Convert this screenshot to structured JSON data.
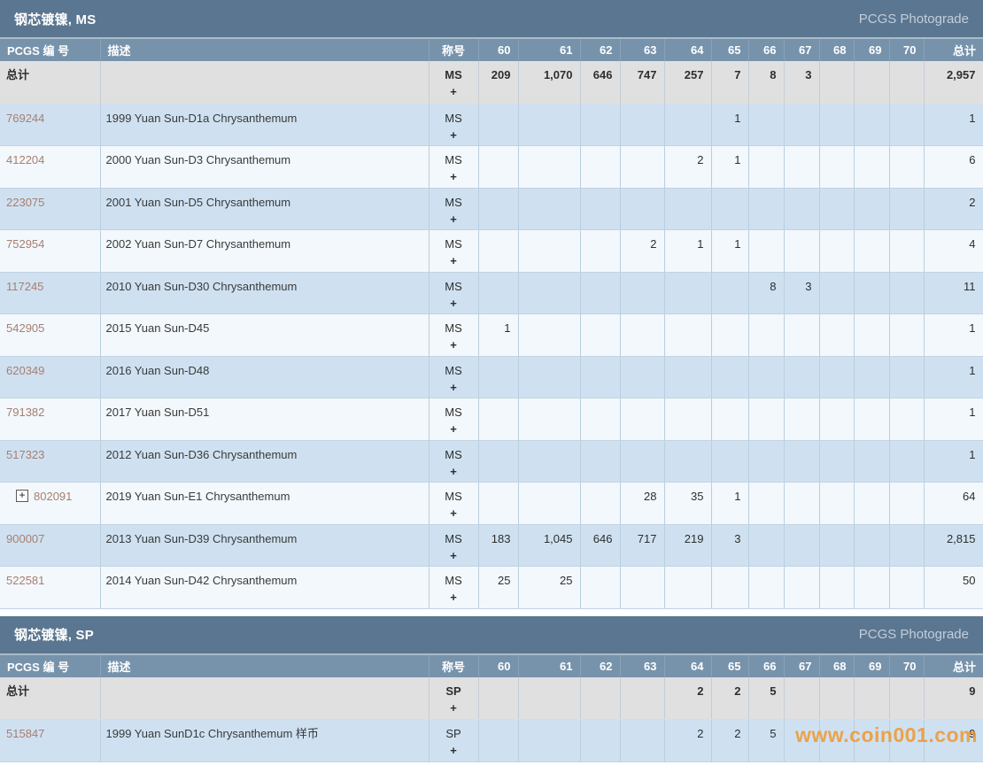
{
  "columns": {
    "pcgs": "PCGS 编 号",
    "desc": "描述",
    "designation": "称号",
    "total": "总计"
  },
  "grade_columns": [
    "60",
    "61",
    "62",
    "63",
    "64",
    "65",
    "66",
    "67",
    "68",
    "69",
    "70"
  ],
  "icons": {
    "expand_icon_glyph": "+"
  },
  "watermark": "www.coin001.com",
  "colors": {
    "section_bar": "#5b7690",
    "header_row": "#7793ac",
    "total_row_bg": "#e0e0e1",
    "row_blue": "#cfe1f1",
    "row_white": "#f3f8fc",
    "pcgs_link": "#a87e70",
    "watermark_orange": "#f0962d"
  },
  "sections": [
    {
      "title": "钢芯镀镍, MS",
      "photograde_label": "PCGS Photograde",
      "total_row": {
        "label": "总计",
        "designation": "MS",
        "plus": "+",
        "grades": {
          "60": "209",
          "61": "1,070",
          "62": "646",
          "63": "747",
          "64": "257",
          "65": "7",
          "66": "8",
          "67": "3",
          "68": "",
          "69": "",
          "70": ""
        },
        "total": "2,957"
      },
      "rows": [
        {
          "pcgs": "769244",
          "expandable": false,
          "desc": "1999 Yuan Sun-D1a Chrysanthemum",
          "designation": "MS",
          "plus": "+",
          "grades": {
            "65": "1"
          },
          "total": "1"
        },
        {
          "pcgs": "412204",
          "expandable": false,
          "desc": "2000 Yuan Sun-D3 Chrysanthemum",
          "designation": "MS",
          "plus": "+",
          "grades": {
            "64": "2",
            "65": "1"
          },
          "total": "6"
        },
        {
          "pcgs": "223075",
          "expandable": false,
          "desc": "2001 Yuan Sun-D5 Chrysanthemum",
          "designation": "MS",
          "plus": "+",
          "grades": {},
          "total": "2"
        },
        {
          "pcgs": "752954",
          "expandable": false,
          "desc": "2002 Yuan Sun-D7 Chrysanthemum",
          "designation": "MS",
          "plus": "+",
          "grades": {
            "63": "2",
            "64": "1",
            "65": "1"
          },
          "total": "4"
        },
        {
          "pcgs": "117245",
          "expandable": false,
          "desc": "2010 Yuan Sun-D30 Chrysanthemum",
          "designation": "MS",
          "plus": "+",
          "grades": {
            "66": "8",
            "67": "3"
          },
          "total": "11"
        },
        {
          "pcgs": "542905",
          "expandable": false,
          "desc": "2015 Yuan Sun-D45",
          "designation": "MS",
          "plus": "+",
          "grades": {
            "60": "1"
          },
          "total": "1"
        },
        {
          "pcgs": "620349",
          "expandable": false,
          "desc": "2016 Yuan Sun-D48",
          "designation": "MS",
          "plus": "+",
          "grades": {},
          "total": "1"
        },
        {
          "pcgs": "791382",
          "expandable": false,
          "desc": "2017 Yuan Sun-D51",
          "designation": "MS",
          "plus": "+",
          "grades": {},
          "total": "1"
        },
        {
          "pcgs": "517323",
          "expandable": false,
          "desc": "2012 Yuan Sun-D36 Chrysanthemum",
          "designation": "MS",
          "plus": "+",
          "grades": {},
          "total": "1"
        },
        {
          "pcgs": "802091",
          "expandable": true,
          "desc": "2019 Yuan Sun-E1 Chrysanthemum",
          "designation": "MS",
          "plus": "+",
          "grades": {
            "63": "28",
            "64": "35",
            "65": "1"
          },
          "total": "64"
        },
        {
          "pcgs": "900007",
          "expandable": false,
          "desc": "2013 Yuan Sun-D39 Chrysanthemum",
          "designation": "MS",
          "plus": "+",
          "grades": {
            "60": "183",
            "61": "1,045",
            "62": "646",
            "63": "717",
            "64": "219",
            "65": "3"
          },
          "total": "2,815"
        },
        {
          "pcgs": "522581",
          "expandable": false,
          "desc": "2014 Yuan Sun-D42 Chrysanthemum",
          "designation": "MS",
          "plus": "+",
          "grades": {
            "60": "25",
            "61": "25"
          },
          "total": "50"
        }
      ]
    },
    {
      "title": "钢芯镀镍, SP",
      "photograde_label": "PCGS Photograde",
      "total_row": {
        "label": "总计",
        "designation": "SP",
        "plus": "+",
        "grades": {
          "64": "2",
          "65": "2",
          "66": "5"
        },
        "total": "9"
      },
      "rows": [
        {
          "pcgs": "515847",
          "expandable": false,
          "desc": "1999 Yuan SunD1c Chrysanthemum 样币",
          "designation": "SP",
          "plus": "+",
          "grades": {
            "64": "2",
            "65": "2",
            "66": "5"
          },
          "total": "9"
        }
      ]
    }
  ]
}
